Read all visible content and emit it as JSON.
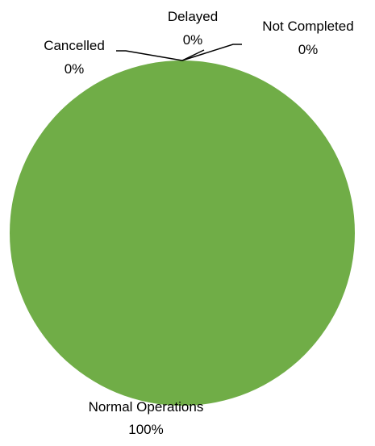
{
  "chart_data": {
    "type": "pie",
    "title": "",
    "slices": [
      {
        "label": "Normal Operations",
        "value": 100,
        "value_label": "100%",
        "color": "#70AD47"
      },
      {
        "label": "Cancelled",
        "value": 0,
        "value_label": "0%",
        "color": "#4472C4"
      },
      {
        "label": "Delayed",
        "value": 0,
        "value_label": "0%",
        "color": "#ED7D31"
      },
      {
        "label": "Not Completed",
        "value": 0,
        "value_label": "0%",
        "color": "#A5A5A5"
      }
    ],
    "legend": "none",
    "data_labels": "outside with leader lines"
  }
}
